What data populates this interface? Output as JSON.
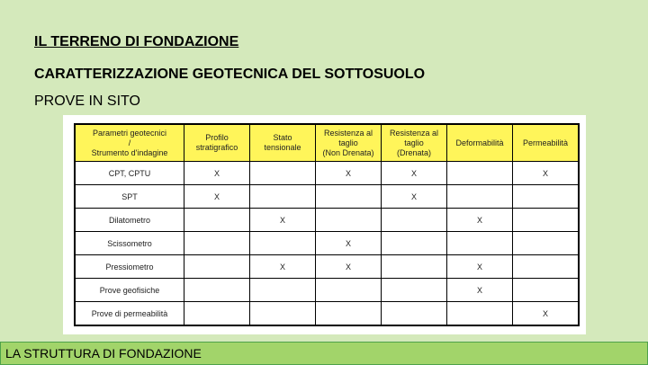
{
  "titles": {
    "main": "IL TERRENO DI FONDAZIONE",
    "sub": "CARATTERIZZAZIONE GEOTECNICA DEL SOTTOSUOLO",
    "section": "PROVE IN SITO"
  },
  "table": {
    "headers": [
      "Parametri geotecnici\n/\nStrumento d'indagine",
      "Profilo\nstratigrafico",
      "Stato\ntensionale",
      "Resistenza al\ntaglio\n(Non Drenata)",
      "Resistenza al\ntaglio\n(Drenata)",
      "Deformabilità",
      "Permeabilità"
    ],
    "rows": [
      [
        "CPT, CPTU",
        "X",
        "",
        "X",
        "X",
        "",
        "X"
      ],
      [
        "SPT",
        "X",
        "",
        "",
        "X",
        "",
        ""
      ],
      [
        "Dilatometro",
        "",
        "X",
        "",
        "",
        "X",
        ""
      ],
      [
        "Scissometro",
        "",
        "",
        "X",
        "",
        "",
        ""
      ],
      [
        "Pressiometro",
        "",
        "X",
        "X",
        "",
        "X",
        ""
      ],
      [
        "Prove geofisiche",
        "",
        "",
        "",
        "",
        "X",
        ""
      ],
      [
        "Prove di permeabilità",
        "",
        "",
        "",
        "",
        "",
        "X"
      ]
    ],
    "header_color": "#fff55a"
  },
  "footer": {
    "label": "LA STRUTTURA DI FONDAZIONE"
  }
}
